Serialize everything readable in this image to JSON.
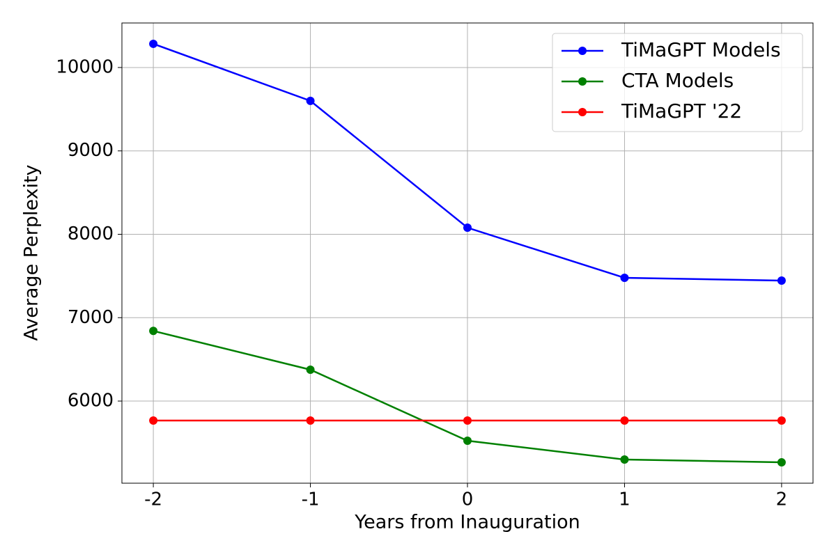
{
  "chart_data": {
    "type": "line",
    "x_label": "Years from Inauguration",
    "y_label": "Average Perplexity",
    "x": [
      -2,
      -1,
      0,
      1,
      2
    ],
    "series": [
      {
        "name": "TiMaGPT Models",
        "color": "#0000ff",
        "values": [
          10284,
          9600,
          8079,
          7478,
          7445
        ]
      },
      {
        "name": "CTA Models",
        "color": "#008000",
        "values": [
          6841,
          6376,
          5524,
          5299,
          5265
        ]
      },
      {
        "name": "TiMaGPT '22",
        "color": "#ff0000",
        "values": [
          5766,
          5766,
          5766,
          5766,
          5766
        ]
      }
    ],
    "xlim": [
      -2.2,
      2.2
    ],
    "ylim": [
      5015,
      10534
    ],
    "xticks": [
      -2,
      -1,
      0,
      1,
      2
    ],
    "yticks": [
      6000,
      7000,
      8000,
      9000,
      10000
    ],
    "grid": true,
    "legend": "upper right"
  }
}
